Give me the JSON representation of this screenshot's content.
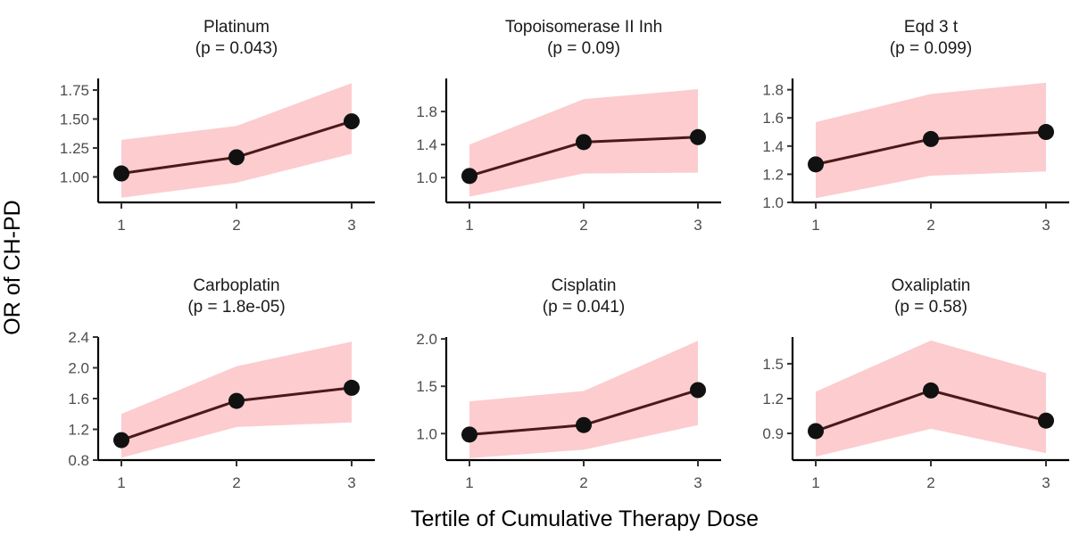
{
  "colors": {
    "ribbon": "#fccccf",
    "line": "#4a1a1a",
    "point": "#111111"
  },
  "chart_data": {
    "type": "line",
    "layout": "facet-grid 2x3",
    "xlabel": "Tertile of Cumulative Therapy Dose",
    "ylabel": "OR of CH-PD",
    "x": [
      1,
      2,
      3
    ],
    "panels": [
      {
        "name": "Platinum",
        "p_label": "(p = 0.043)",
        "ylim": [
          0.78,
          1.85
        ],
        "yticks": [
          1.0,
          1.25,
          1.5,
          1.75
        ],
        "ytick_labels": [
          "1.00",
          "1.25",
          "1.50",
          "1.75"
        ],
        "values": [
          1.03,
          1.17,
          1.48
        ],
        "lower": [
          0.82,
          0.95,
          1.2
        ],
        "upper": [
          1.32,
          1.44,
          1.81
        ]
      },
      {
        "name": "Topoisomerase II Inh",
        "p_label": "(p = 0.09)",
        "ylim": [
          0.7,
          2.2
        ],
        "yticks": [
          1.0,
          1.4,
          1.8
        ],
        "ytick_labels": [
          "1.0",
          "1.4",
          "1.8"
        ],
        "values": [
          1.02,
          1.43,
          1.49
        ],
        "lower": [
          0.77,
          1.05,
          1.06
        ],
        "upper": [
          1.4,
          1.95,
          2.07
        ]
      },
      {
        "name": "Eqd 3 t",
        "p_label": "(p = 0.099)",
        "ylim": [
          1.0,
          1.88
        ],
        "yticks": [
          1.0,
          1.2,
          1.4,
          1.6,
          1.8
        ],
        "ytick_labels": [
          "1.0",
          "1.2",
          "1.4",
          "1.6",
          "1.8"
        ],
        "values": [
          1.27,
          1.45,
          1.5
        ],
        "lower": [
          1.03,
          1.19,
          1.22
        ],
        "upper": [
          1.57,
          1.77,
          1.85
        ]
      },
      {
        "name": "Carboplatin",
        "p_label": "(p = 1.8e-05)",
        "ylim": [
          0.8,
          2.4
        ],
        "yticks": [
          0.8,
          1.2,
          1.6,
          2.0,
          2.4
        ],
        "ytick_labels": [
          "0.8",
          "1.2",
          "1.6",
          "2.0",
          "2.4"
        ],
        "values": [
          1.06,
          1.57,
          1.74
        ],
        "lower": [
          0.83,
          1.23,
          1.29
        ],
        "upper": [
          1.4,
          2.02,
          2.34
        ]
      },
      {
        "name": "Cisplatin",
        "p_label": "(p = 0.041)",
        "ylim": [
          0.72,
          2.02
        ],
        "yticks": [
          1.0,
          1.5,
          2.0
        ],
        "ytick_labels": [
          "1.0",
          "1.5",
          "2.0"
        ],
        "values": [
          0.99,
          1.09,
          1.46
        ],
        "lower": [
          0.74,
          0.83,
          1.09
        ],
        "upper": [
          1.34,
          1.45,
          1.98
        ]
      },
      {
        "name": "Oxaliplatin",
        "p_label": "(p = 0.58)",
        "ylim": [
          0.67,
          1.73
        ],
        "yticks": [
          0.9,
          1.2,
          1.5
        ],
        "ytick_labels": [
          "0.9",
          "1.2",
          "1.5"
        ],
        "values": [
          0.92,
          1.27,
          1.01
        ],
        "lower": [
          0.7,
          0.94,
          0.73
        ],
        "upper": [
          1.26,
          1.7,
          1.42
        ]
      }
    ]
  }
}
